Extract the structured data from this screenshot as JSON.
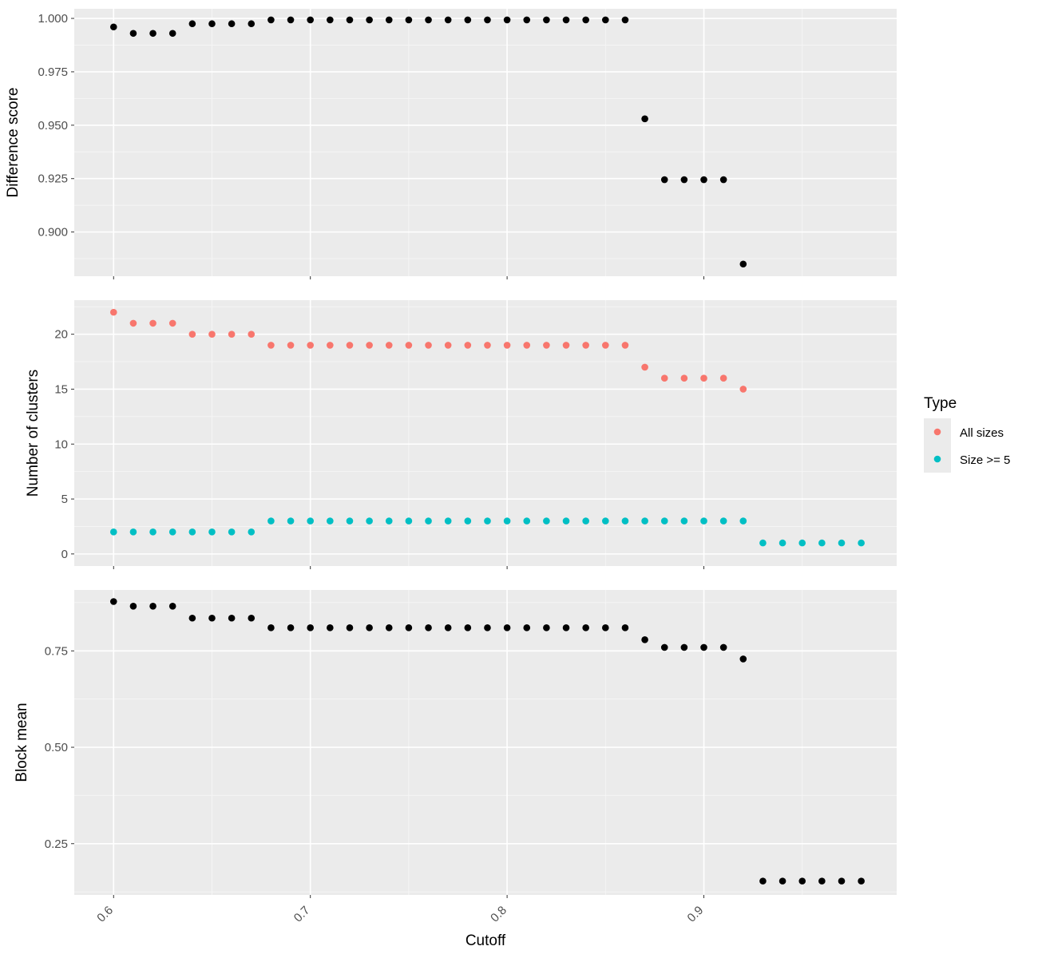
{
  "chart_data": {
    "type": "scatter",
    "layout": "faceted-stack",
    "x_label": "Cutoff",
    "x_ticks": [
      0.6,
      0.7,
      0.8,
      0.9
    ],
    "x_tick_labels": [
      "0.6",
      "0.7",
      "0.8",
      "0.9"
    ],
    "x_range": [
      0.58,
      0.998
    ],
    "panels": [
      {
        "y_label": "Difference score",
        "y_range": [
          0.8793,
          1.0045
        ],
        "y_ticks": [
          0.9,
          0.925,
          0.95,
          0.975,
          1.0
        ],
        "y_tick_labels": [
          "0.900",
          "0.925",
          "0.950",
          "0.975",
          "1.000"
        ],
        "series": [
          {
            "color": "#000000",
            "points": [
              [
                0.6,
                0.996
              ],
              [
                0.61,
                0.993
              ],
              [
                0.62,
                0.993
              ],
              [
                0.63,
                0.993
              ],
              [
                0.64,
                0.9975
              ],
              [
                0.65,
                0.9975
              ],
              [
                0.66,
                0.9975
              ],
              [
                0.67,
                0.9975
              ],
              [
                0.68,
                0.9993
              ],
              [
                0.69,
                0.9993
              ],
              [
                0.7,
                0.9993
              ],
              [
                0.71,
                0.9993
              ],
              [
                0.72,
                0.9993
              ],
              [
                0.73,
                0.9993
              ],
              [
                0.74,
                0.9993
              ],
              [
                0.75,
                0.9993
              ],
              [
                0.76,
                0.9993
              ],
              [
                0.77,
                0.9993
              ],
              [
                0.78,
                0.9993
              ],
              [
                0.79,
                0.9993
              ],
              [
                0.8,
                0.9993
              ],
              [
                0.81,
                0.9993
              ],
              [
                0.82,
                0.9993
              ],
              [
                0.83,
                0.9993
              ],
              [
                0.84,
                0.9993
              ],
              [
                0.85,
                0.9993
              ],
              [
                0.86,
                0.9993
              ],
              [
                0.87,
                0.953
              ],
              [
                0.88,
                0.9245
              ],
              [
                0.89,
                0.9245
              ],
              [
                0.9,
                0.9245
              ],
              [
                0.91,
                0.9245
              ],
              [
                0.92,
                0.885
              ]
            ]
          }
        ]
      },
      {
        "y_label": "Number of clusters",
        "y_range": [
          -1.1,
          23.1
        ],
        "y_ticks": [
          0,
          5,
          10,
          15,
          20
        ],
        "y_tick_labels": [
          "0",
          "5",
          "10",
          "15",
          "20"
        ],
        "series": [
          {
            "name": "All sizes",
            "color": "#F8766D",
            "points": [
              [
                0.6,
                22
              ],
              [
                0.61,
                21
              ],
              [
                0.62,
                21
              ],
              [
                0.63,
                21
              ],
              [
                0.64,
                20
              ],
              [
                0.65,
                20
              ],
              [
                0.66,
                20
              ],
              [
                0.67,
                20
              ],
              [
                0.68,
                19
              ],
              [
                0.69,
                19
              ],
              [
                0.7,
                19
              ],
              [
                0.71,
                19
              ],
              [
                0.72,
                19
              ],
              [
                0.73,
                19
              ],
              [
                0.74,
                19
              ],
              [
                0.75,
                19
              ],
              [
                0.76,
                19
              ],
              [
                0.77,
                19
              ],
              [
                0.78,
                19
              ],
              [
                0.79,
                19
              ],
              [
                0.8,
                19
              ],
              [
                0.81,
                19
              ],
              [
                0.82,
                19
              ],
              [
                0.83,
                19
              ],
              [
                0.84,
                19
              ],
              [
                0.85,
                19
              ],
              [
                0.86,
                19
              ],
              [
                0.87,
                17
              ],
              [
                0.88,
                16
              ],
              [
                0.89,
                16
              ],
              [
                0.9,
                16
              ],
              [
                0.91,
                16
              ],
              [
                0.92,
                15
              ]
            ]
          },
          {
            "name": "Size >= 5",
            "color": "#00BFC4",
            "points": [
              [
                0.6,
                2
              ],
              [
                0.61,
                2
              ],
              [
                0.62,
                2
              ],
              [
                0.63,
                2
              ],
              [
                0.64,
                2
              ],
              [
                0.65,
                2
              ],
              [
                0.66,
                2
              ],
              [
                0.67,
                2
              ],
              [
                0.68,
                3
              ],
              [
                0.69,
                3
              ],
              [
                0.7,
                3
              ],
              [
                0.71,
                3
              ],
              [
                0.72,
                3
              ],
              [
                0.73,
                3
              ],
              [
                0.74,
                3
              ],
              [
                0.75,
                3
              ],
              [
                0.76,
                3
              ],
              [
                0.77,
                3
              ],
              [
                0.78,
                3
              ],
              [
                0.79,
                3
              ],
              [
                0.8,
                3
              ],
              [
                0.81,
                3
              ],
              [
                0.82,
                3
              ],
              [
                0.83,
                3
              ],
              [
                0.84,
                3
              ],
              [
                0.85,
                3
              ],
              [
                0.86,
                3
              ],
              [
                0.87,
                3
              ],
              [
                0.88,
                3
              ],
              [
                0.89,
                3
              ],
              [
                0.9,
                3
              ],
              [
                0.91,
                3
              ],
              [
                0.92,
                3
              ],
              [
                0.93,
                1
              ],
              [
                0.94,
                1
              ],
              [
                0.95,
                1
              ],
              [
                0.96,
                1
              ],
              [
                0.97,
                1
              ],
              [
                0.98,
                1
              ]
            ]
          }
        ]
      },
      {
        "y_label": "Block mean",
        "y_range": [
          0.117,
          0.908
        ],
        "y_ticks": [
          0.25,
          0.5,
          0.75
        ],
        "y_tick_labels": [
          "0.25",
          "0.50",
          "0.75"
        ],
        "series": [
          {
            "color": "#000000",
            "points": [
              [
                0.6,
                0.878
              ],
              [
                0.61,
                0.866
              ],
              [
                0.62,
                0.866
              ],
              [
                0.63,
                0.866
              ],
              [
                0.64,
                0.835
              ],
              [
                0.65,
                0.835
              ],
              [
                0.66,
                0.835
              ],
              [
                0.67,
                0.835
              ],
              [
                0.68,
                0.81
              ],
              [
                0.69,
                0.81
              ],
              [
                0.7,
                0.81
              ],
              [
                0.71,
                0.81
              ],
              [
                0.72,
                0.81
              ],
              [
                0.73,
                0.81
              ],
              [
                0.74,
                0.81
              ],
              [
                0.75,
                0.81
              ],
              [
                0.76,
                0.81
              ],
              [
                0.77,
                0.81
              ],
              [
                0.78,
                0.81
              ],
              [
                0.79,
                0.81
              ],
              [
                0.8,
                0.81
              ],
              [
                0.81,
                0.81
              ],
              [
                0.82,
                0.81
              ],
              [
                0.83,
                0.81
              ],
              [
                0.84,
                0.81
              ],
              [
                0.85,
                0.81
              ],
              [
                0.86,
                0.81
              ],
              [
                0.87,
                0.779
              ],
              [
                0.88,
                0.759
              ],
              [
                0.89,
                0.759
              ],
              [
                0.9,
                0.759
              ],
              [
                0.91,
                0.759
              ],
              [
                0.92,
                0.729
              ],
              [
                0.93,
                0.153
              ],
              [
                0.94,
                0.153
              ],
              [
                0.95,
                0.153
              ],
              [
                0.96,
                0.153
              ],
              [
                0.97,
                0.153
              ],
              [
                0.98,
                0.153
              ]
            ]
          }
        ]
      }
    ],
    "legend": {
      "title": "Type",
      "position": "right",
      "entries": [
        {
          "label": "All sizes",
          "color": "#F8766D"
        },
        {
          "label": "Size >= 5",
          "color": "#00BFC4"
        }
      ]
    },
    "theme": {
      "panel_background": "#EBEBEB",
      "major_grid": "#FFFFFF",
      "minor_grid": "#F5F5F5",
      "tick_color": "#333333",
      "tick_text_color": "#4D4D4D",
      "legend_key_background": "#EBEBEB"
    }
  }
}
